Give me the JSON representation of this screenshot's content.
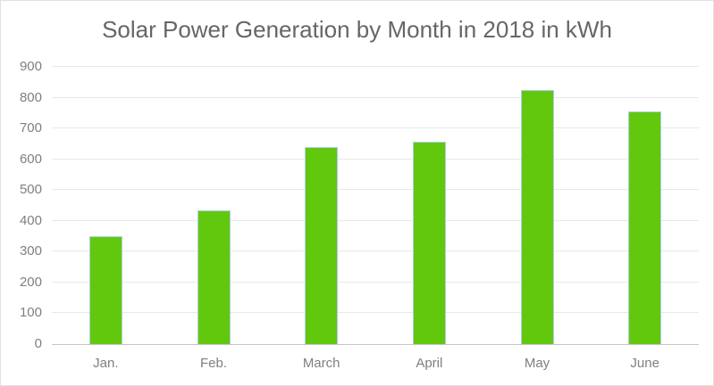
{
  "chart_data": {
    "type": "bar",
    "title": "Solar Power Generation by Month in 2018 in kWh",
    "categories": [
      "Jan.",
      "Feb.",
      "March",
      "April",
      "May",
      "June"
    ],
    "values": [
      350,
      433,
      640,
      657,
      825,
      755
    ],
    "xlabel": "",
    "ylabel": "",
    "ylim": [
      0,
      900
    ],
    "yticks": [
      0,
      100,
      200,
      300,
      400,
      500,
      600,
      700,
      800,
      900
    ],
    "grid": true,
    "legend": false,
    "colors": {
      "bar_fill": "#62c80d",
      "bar_border": "#aecde8",
      "gridline": "#e8e8e8",
      "axis_line": "#c6c6c6",
      "title_text": "#666666",
      "tick_text": "#7f7f7f",
      "background": "#ffffff",
      "frame_border": "#e8dee4"
    }
  }
}
